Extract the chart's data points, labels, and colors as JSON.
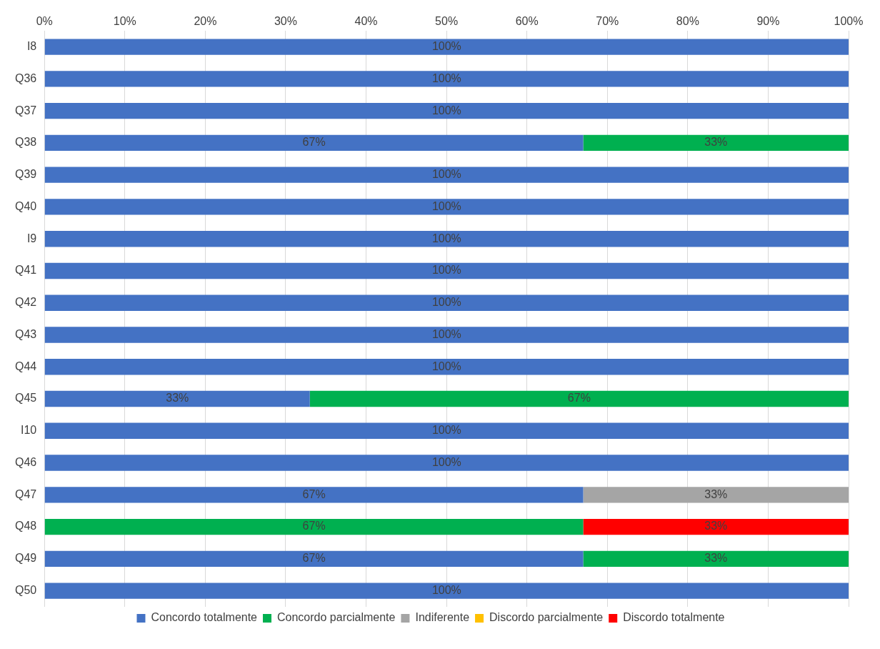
{
  "chart_data": {
    "type": "bar",
    "orientation": "horizontal",
    "stacked": true,
    "categories": [
      "I8",
      "Q36",
      "Q37",
      "Q38",
      "Q39",
      "Q40",
      "I9",
      "Q41",
      "Q42",
      "Q43",
      "Q44",
      "Q45",
      "I10",
      "Q46",
      "Q47",
      "Q48",
      "Q49",
      "Q50"
    ],
    "series": [
      {
        "name": "Concordo totalmente",
        "color": "#4472c4",
        "values": [
          100,
          100,
          100,
          67,
          100,
          100,
          100,
          100,
          100,
          100,
          100,
          33,
          100,
          100,
          67,
          null,
          67,
          100
        ],
        "value_labels": [
          "100%",
          "100%",
          "100%",
          "67%",
          "100%",
          "100%",
          "100%",
          "100%",
          "100%",
          "100%",
          "100%",
          "33%",
          "100%",
          "100%",
          "67%",
          null,
          "67%",
          "100%"
        ]
      },
      {
        "name": "Concordo parcialmente",
        "color": "#00b050",
        "values": [
          null,
          null,
          null,
          33,
          null,
          null,
          null,
          null,
          null,
          null,
          null,
          67,
          null,
          null,
          null,
          67,
          33,
          null
        ],
        "value_labels": [
          null,
          null,
          null,
          "33%",
          null,
          null,
          null,
          null,
          null,
          null,
          null,
          "67%",
          null,
          null,
          null,
          "67%",
          "33%",
          null
        ]
      },
      {
        "name": "Indiferente",
        "color": "#a5a5a5",
        "values": [
          null,
          null,
          null,
          null,
          null,
          null,
          null,
          null,
          null,
          null,
          null,
          null,
          null,
          null,
          33,
          null,
          null,
          null
        ],
        "value_labels": [
          null,
          null,
          null,
          null,
          null,
          null,
          null,
          null,
          null,
          null,
          null,
          null,
          null,
          null,
          "33%",
          null,
          null,
          null
        ]
      },
      {
        "name": "Discordo parcialmente",
        "color": "#ffc000",
        "values": [
          null,
          null,
          null,
          null,
          null,
          null,
          null,
          null,
          null,
          null,
          null,
          null,
          null,
          null,
          null,
          null,
          null,
          null
        ]
      },
      {
        "name": "Discordo totalmente",
        "color": "#ff0000",
        "values": [
          null,
          null,
          null,
          null,
          null,
          null,
          null,
          null,
          null,
          null,
          null,
          null,
          null,
          null,
          null,
          33,
          null,
          null
        ],
        "value_labels": [
          null,
          null,
          null,
          null,
          null,
          null,
          null,
          null,
          null,
          null,
          null,
          null,
          null,
          null,
          null,
          "33%",
          null,
          null
        ]
      }
    ],
    "xlim": [
      0,
      100
    ],
    "xticks": [
      {
        "value": 0,
        "label": "0%"
      },
      {
        "value": 10,
        "label": "10%"
      },
      {
        "value": 20,
        "label": "20%"
      },
      {
        "value": 30,
        "label": "30%"
      },
      {
        "value": 40,
        "label": "40%"
      },
      {
        "value": 50,
        "label": "50%"
      },
      {
        "value": 60,
        "label": "60%"
      },
      {
        "value": 70,
        "label": "70%"
      },
      {
        "value": 80,
        "label": "80%"
      },
      {
        "value": 90,
        "label": "90%"
      },
      {
        "value": 100,
        "label": "100%"
      }
    ],
    "grid": "x",
    "legend": "bottom"
  }
}
